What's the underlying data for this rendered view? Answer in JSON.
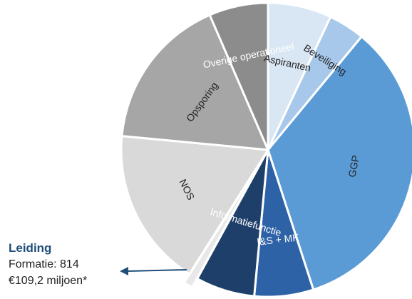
{
  "chart_data": {
    "type": "pie",
    "title": "",
    "slices": [
      {
        "label": "Aspiranten",
        "value": 7.0,
        "color": "#d9e7f5",
        "text_color": "#222222",
        "label_radius": 0.6
      },
      {
        "label": "Beveiliging",
        "value": 4.0,
        "color": "#a7c8ea",
        "text_color": "#222222",
        "label_radius": 0.72
      },
      {
        "label": "GGP",
        "value": 34.0,
        "color": "#5b9bd5",
        "text_color": "#222222",
        "label_radius": 0.6
      },
      {
        "label": "I&S + MK",
        "value": 6.5,
        "color": "#2e62a6",
        "text_color": "#ffffff",
        "label_radius": 0.62
      },
      {
        "label": "Informatiefunctie",
        "value": 6.5,
        "color": "#1f3f6b",
        "text_color": "#ffffff",
        "label_radius": 0.52
      },
      {
        "label": "Leiding",
        "value": 1.0,
        "color": "#e8e8e8",
        "text_color": "#222222",
        "label_radius": 0,
        "exploded": true
      },
      {
        "label": "NOS",
        "value": 17.5,
        "color": "#d9d9d9",
        "text_color": "#222222",
        "label_radius": 0.62
      },
      {
        "label": "Opsporing",
        "value": 17.0,
        "color": "#a6a6a6",
        "text_color": "#222222",
        "label_radius": 0.55
      },
      {
        "label": "Overige operationeel",
        "value": 6.5,
        "color": "#8c8c8c",
        "text_color": "#ffffff",
        "label_radius": 0.65
      }
    ]
  },
  "leiding_callout": {
    "title": "Leiding",
    "formatie": "Formatie: 814",
    "budget": "€109,2 miljoen*"
  }
}
